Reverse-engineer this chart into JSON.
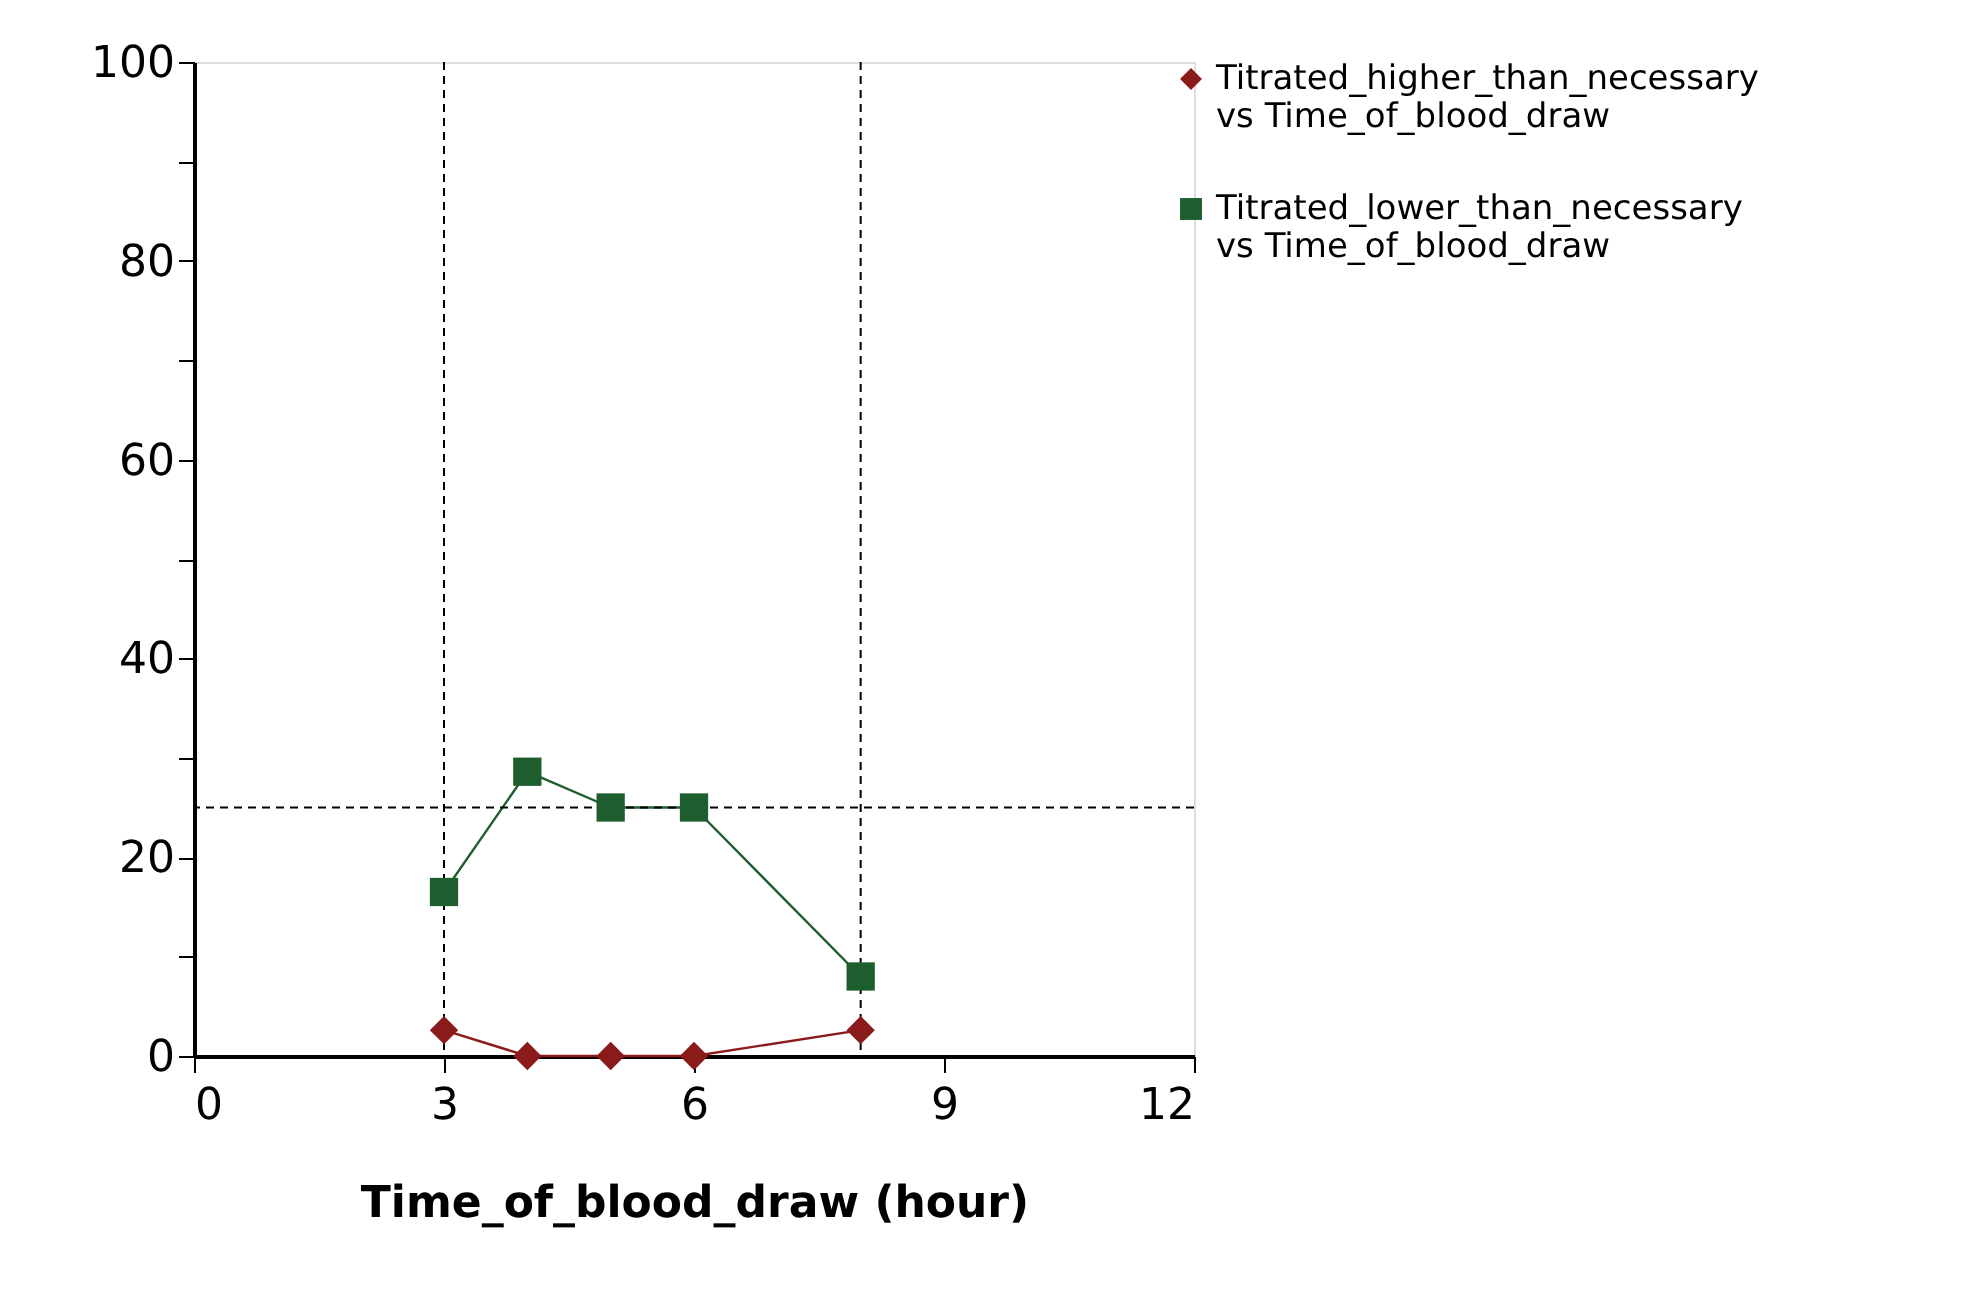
{
  "chart_data": {
    "type": "line",
    "xlabel": "Time_of_blood_draw (hour)",
    "xlim": [
      0,
      12
    ],
    "xticks": [
      0,
      3,
      6,
      9,
      12
    ],
    "ylim": [
      0,
      100
    ],
    "yticks": [
      0,
      {
        "value": 10,
        "label": null
      },
      20,
      {
        "value": 30,
        "label": null
      },
      40,
      {
        "value": 50,
        "label": null
      },
      60,
      {
        "value": 70,
        "label": null
      },
      80,
      {
        "value": 90,
        "label": null
      },
      100
    ],
    "x": [
      3,
      4,
      5,
      6,
      8
    ],
    "series": [
      {
        "name": "Titrated_higher_than_necessary vs Time_of_blood_draw",
        "color": "#8b1a1a",
        "marker": "diamond",
        "values": [
          2.6,
          0,
          0,
          0,
          2.6
        ]
      },
      {
        "name": "Titrated_lower_than_necessary vs Time_of_blood_draw",
        "color": "#1e5e2e",
        "marker": "square",
        "values": [
          16.5,
          28.6,
          25,
          25,
          8
        ]
      }
    ],
    "ref_lines": [
      {
        "axis": "x",
        "value": 3,
        "line_style": "dashed",
        "color": "#000000"
      },
      {
        "axis": "x",
        "value": 8,
        "line_style": "dashed",
        "color": "#000000"
      },
      {
        "axis": "y",
        "value": 25,
        "line_style": "dashed",
        "color": "#000000"
      }
    ],
    "grid": false,
    "legend": "right",
    "line_style": "solid"
  }
}
